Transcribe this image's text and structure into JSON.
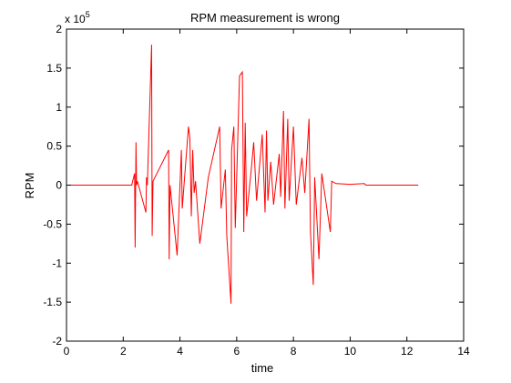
{
  "chart_data": {
    "type": "line",
    "title": "RPM measurement is wrong",
    "xlabel": "time",
    "ylabel": "RPM",
    "y_exponent_label": "x 10",
    "y_exponent_power": "5",
    "xlim": [
      0,
      14
    ],
    "ylim": [
      -2,
      2
    ],
    "y_unit_multiplier": 100000,
    "x_ticks": [
      0,
      2,
      4,
      6,
      8,
      10,
      12,
      14
    ],
    "x_tick_labels": [
      "0",
      "2",
      "4",
      "6",
      "8",
      "10",
      "12",
      "14"
    ],
    "y_ticks": [
      -2,
      -1.5,
      -1,
      -0.5,
      0,
      0.5,
      1,
      1.5,
      2
    ],
    "y_tick_labels": [
      "-2",
      "-1.5",
      "-1",
      "-0.5",
      "0",
      "0.5",
      "1",
      "1.5",
      "2"
    ],
    "grid": false,
    "series": [
      {
        "color": "#ff0000",
        "x": [
          0,
          2.3,
          2.4,
          2.42,
          2.45,
          2.47,
          2.5,
          2.8,
          2.82,
          2.85,
          3.0,
          3.02,
          3.05,
          3.6,
          3.62,
          3.65,
          3.9,
          4.05,
          4.08,
          4.3,
          4.35,
          4.4,
          4.45,
          4.5,
          4.55,
          4.7,
          5.0,
          5.4,
          5.45,
          5.6,
          5.65,
          5.8,
          5.82,
          5.9,
          5.95,
          6.1,
          6.2,
          6.25,
          6.3,
          6.35,
          6.5,
          6.6,
          6.7,
          6.9,
          7.0,
          7.05,
          7.1,
          7.2,
          7.3,
          7.5,
          7.55,
          7.65,
          7.7,
          7.8,
          7.85,
          8.0,
          8.1,
          8.3,
          8.4,
          8.55,
          8.6,
          8.7,
          8.75,
          8.9,
          9.0,
          9.3,
          9.35,
          9.5,
          10.0,
          10.5,
          10.55,
          12.4
        ],
        "y": [
          0,
          0,
          0.15,
          -0.8,
          0.55,
          0,
          0.05,
          -0.35,
          0.1,
          0,
          1.8,
          -0.65,
          0.05,
          0.45,
          -0.95,
          0,
          -0.9,
          0.45,
          -0.3,
          0.75,
          0.6,
          -0.4,
          0.45,
          -0.1,
          0.05,
          -0.75,
          0.1,
          0.75,
          -0.3,
          0.2,
          -0.65,
          -1.52,
          0.45,
          0.75,
          -0.55,
          1.4,
          1.45,
          -0.6,
          0.8,
          -0.4,
          0.15,
          0.55,
          -0.2,
          0.65,
          -0.35,
          0.7,
          -0.2,
          0.3,
          -0.25,
          0.4,
          -0.15,
          0.95,
          -0.3,
          0.85,
          -0.2,
          0.75,
          -0.25,
          0.35,
          -0.1,
          0.85,
          -0.6,
          -1.28,
          0.1,
          -0.95,
          0.15,
          -0.6,
          0.05,
          0.02,
          0.01,
          0.02,
          0,
          0
        ]
      }
    ]
  }
}
